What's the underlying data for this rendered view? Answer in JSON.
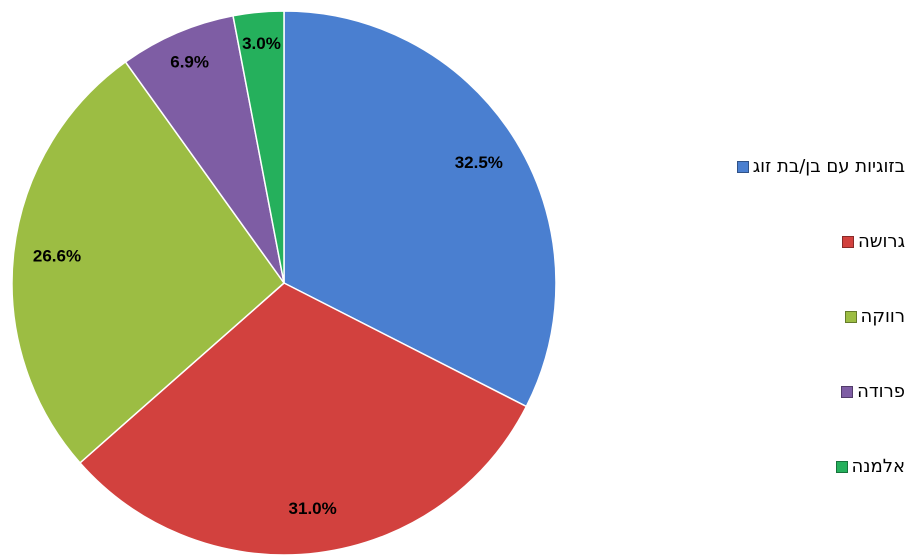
{
  "chart_data": {
    "type": "pie",
    "categories": [
      "בזוגיות עם בן/בת זוג",
      "גרושה",
      "רווקה",
      "פרודה",
      "אלמנה"
    ],
    "values": [
      32.5,
      31.0,
      26.6,
      6.9,
      3.0
    ],
    "value_labels": [
      "32.5%",
      "31.0%",
      "26.6%",
      "6.9%",
      "3.0%"
    ],
    "colors": [
      "#4a7fd0",
      "#d2413e",
      "#9cbd43",
      "#7e5da4",
      "#25b05c"
    ],
    "legend": "right"
  }
}
